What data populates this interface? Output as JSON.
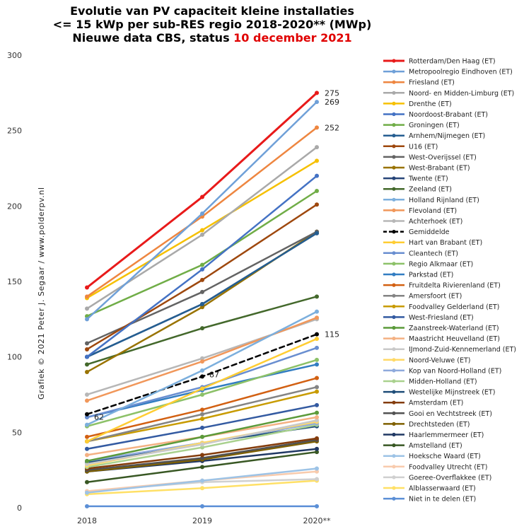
{
  "chart_data": {
    "type": "line",
    "title_lines": [
      "Evolutie van PV capaciteit kleine installaties",
      "<= 15 kWp per sub-RES regio 2018-2020** (MWp)",
      "Nieuwe data CBS, status"
    ],
    "title_date": "10 december 2021",
    "credit": "Grafiek © 2021 Peter J. Segaar / www.polderpv.nl",
    "categories": [
      "2018",
      "2019",
      "2020**"
    ],
    "ylim": [
      0,
      300
    ],
    "yticks": [
      0,
      50,
      100,
      150,
      200,
      250,
      300
    ],
    "grid": false,
    "legend_position": "right",
    "series": [
      {
        "name": "Rotterdam/Den Haag (ET)",
        "values": [
          146,
          206,
          275
        ],
        "color": "#e81a1a",
        "width": 3
      },
      {
        "name": "Metropoolregio Eindhoven (ET)",
        "values": [
          125,
          195,
          269
        ],
        "color": "#6fa0d8",
        "width": 2.5
      },
      {
        "name": "Friesland (ET)",
        "values": [
          140,
          193,
          252
        ],
        "color": "#ee8640",
        "width": 2.5
      },
      {
        "name": "Noord- en Midden-Limburg (ET)",
        "values": [
          132,
          181,
          239
        ],
        "color": "#a9a9a9",
        "width": 2.5
      },
      {
        "name": "Drenthe (ET)",
        "values": [
          139,
          184,
          230
        ],
        "color": "#f6c000",
        "width": 2.5
      },
      {
        "name": "Noordoost-Brabant (ET)",
        "values": [
          100,
          158,
          220
        ],
        "color": "#4472c4",
        "width": 2.5
      },
      {
        "name": "Groningen (ET)",
        "values": [
          127,
          161,
          210
        ],
        "color": "#70ad47",
        "width": 2.5
      },
      {
        "name": "Arnhem/Nijmegen (ET)",
        "values": [
          100,
          135,
          182
        ],
        "color": "#255e91",
        "width": 2.5
      },
      {
        "name": "U16 (ET)",
        "values": [
          105,
          151,
          201
        ],
        "color": "#9e480e",
        "width": 2.5
      },
      {
        "name": "West-Overijssel (ET)",
        "values": [
          109,
          143,
          183
        ],
        "color": "#636363",
        "width": 2.5
      },
      {
        "name": "West-Brabant (ET)",
        "values": [
          90,
          133,
          183
        ],
        "color": "#997300",
        "width": 2.5
      },
      {
        "name": "Twente (ET)",
        "values": [
          100,
          135,
          182
        ],
        "color": "#264478",
        "width": 2.5
      },
      {
        "name": "Zeeland (ET)",
        "values": [
          95,
          119,
          140
        ],
        "color": "#43682b",
        "width": 2.5
      },
      {
        "name": "Holland Rijnland (ET)",
        "values": [
          55,
          91,
          130
        ],
        "color": "#7cafdd",
        "width": 2.5
      },
      {
        "name": "Flevoland (ET)",
        "values": [
          71,
          97,
          126
        ],
        "color": "#f1975a",
        "width": 2.5
      },
      {
        "name": "Achterhoek (ET)",
        "values": [
          75,
          99,
          125
        ],
        "color": "#b7b7b7",
        "width": 2.5
      },
      {
        "name": "Gemiddelde",
        "values": [
          62,
          87,
          115
        ],
        "color": "#000000",
        "width": 2.5,
        "dashed": true
      },
      {
        "name": "Hart van Brabant (ET)",
        "values": [
          44,
          79,
          112
        ],
        "color": "#ffcd33",
        "width": 2.5
      },
      {
        "name": "Cleantech (ET)",
        "values": [
          60,
          80,
          106
        ],
        "color": "#698ed0",
        "width": 2.5
      },
      {
        "name": "Regio Alkmaar (ET)",
        "values": [
          54,
          75,
          98
        ],
        "color": "#8cc168",
        "width": 2.5
      },
      {
        "name": "Parkstad (ET)",
        "values": [
          60,
          78,
          95
        ],
        "color": "#327dc2",
        "width": 2.5
      },
      {
        "name": "Fruitdelta Rivierenland (ET)",
        "values": [
          47,
          65,
          86
        ],
        "color": "#d26012",
        "width": 2.5
      },
      {
        "name": "Amersfoort (ET)",
        "values": [
          44,
          62,
          80
        ],
        "color": "#848484",
        "width": 2.5
      },
      {
        "name": "Foodvalley Gelderland (ET)",
        "values": [
          44,
          59,
          77
        ],
        "color": "#c89b00",
        "width": 2.5
      },
      {
        "name": "West-Friesland (ET)",
        "values": [
          39,
          53,
          68
        ],
        "color": "#335aa1",
        "width": 2.5
      },
      {
        "name": "Zaanstreek-Waterland (ET)",
        "values": [
          31,
          47,
          63
        ],
        "color": "#5b9a3a",
        "width": 2.5
      },
      {
        "name": "Maastricht Heuvelland (ET)",
        "values": [
          35,
          47,
          60
        ],
        "color": "#f4b183",
        "width": 2.5
      },
      {
        "name": "IJmond-Zuid-Kennemerland (ET)",
        "values": [
          29,
          42,
          58
        ],
        "color": "#c9c9c9",
        "width": 2.5
      },
      {
        "name": "Noord-Veluwe (ET)",
        "values": [
          28,
          43,
          57
        ],
        "color": "#ffd966",
        "width": 2.5
      },
      {
        "name": "Kop van Noord-Holland (ET)",
        "values": [
          31,
          43,
          56
        ],
        "color": "#8faadc",
        "width": 2.5
      },
      {
        "name": "Midden-Holland (ET)",
        "values": [
          27,
          40,
          55
        ],
        "color": "#a9d18e",
        "width": 2.5
      },
      {
        "name": "Westelijke Mijnstreek (ET)",
        "values": [
          30,
          43,
          54
        ],
        "color": "#1f4e79",
        "width": 2.5
      },
      {
        "name": "Amsterdam (ET)",
        "values": [
          26,
          35,
          46
        ],
        "color": "#843c0c",
        "width": 2.5
      },
      {
        "name": "Gooi en Vechtstreek (ET)",
        "values": [
          25,
          33,
          45
        ],
        "color": "#525252",
        "width": 2.5
      },
      {
        "name": "Drechtsteden (ET)",
        "values": [
          24,
          32,
          44
        ],
        "color": "#7f6000",
        "width": 2.5
      },
      {
        "name": "Haarlemmermeer (ET)",
        "values": [
          24,
          31,
          39
        ],
        "color": "#203864",
        "width": 2.5
      },
      {
        "name": "Amstelland (ET)",
        "values": [
          17,
          27,
          37
        ],
        "color": "#385723",
        "width": 2.5
      },
      {
        "name": "Hoeksche Waard (ET)",
        "values": [
          10,
          18,
          26
        ],
        "color": "#9dc3e6",
        "width": 2.5
      },
      {
        "name": "Foodvalley Utrecht (ET)",
        "values": [
          11,
          18,
          24
        ],
        "color": "#f8cbad",
        "width": 2.5
      },
      {
        "name": "Goeree-Overflakkee (ET)",
        "values": [
          11,
          17,
          19
        ],
        "color": "#d0d0d0",
        "width": 2.5
      },
      {
        "name": "Alblasserwaard (ET)",
        "values": [
          9,
          13,
          18
        ],
        "color": "#ffe066",
        "width": 2.5
      },
      {
        "name": "Niet in te delen (ET)",
        "values": [
          1,
          1,
          1
        ],
        "color": "#5b8fd6",
        "width": 2.5
      }
    ],
    "data_labels": [
      {
        "series": "Rotterdam/Den Haag (ET)",
        "x": "2020**",
        "text": "275"
      },
      {
        "series": "Metropoolregio Eindhoven (ET)",
        "x": "2020**",
        "text": "269"
      },
      {
        "series": "Friesland (ET)",
        "x": "2020**",
        "text": "252"
      },
      {
        "series": "Gemiddelde",
        "x": "2020**",
        "text": "115"
      },
      {
        "series": "Gemiddelde",
        "x": "2019",
        "text": "87"
      },
      {
        "series": "Gemiddelde",
        "x": "2018",
        "text": "62"
      }
    ]
  }
}
